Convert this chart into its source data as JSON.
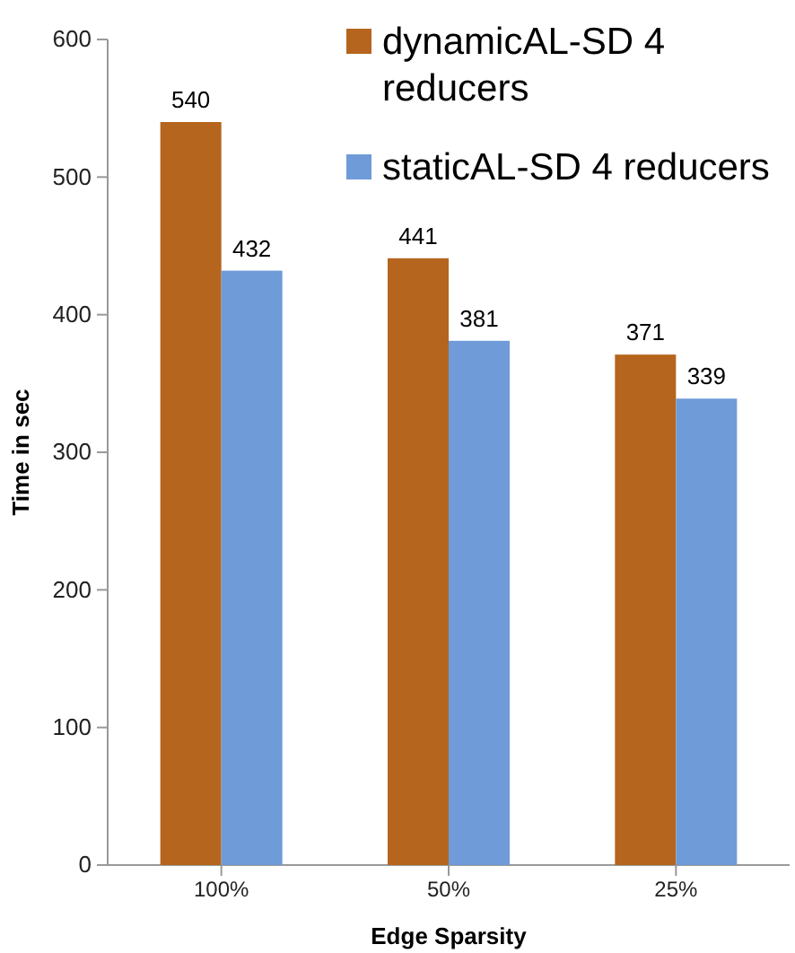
{
  "chart_data": {
    "type": "bar",
    "xlabel": "Edge Sparsity",
    "ylabel": "Time in sec",
    "categories": [
      "100%",
      "50%",
      "25%"
    ],
    "series": [
      {
        "name": "dynamicAL-SD 4 reducers",
        "color": "#b5651d",
        "values": [
          540,
          441,
          371
        ]
      },
      {
        "name": "staticAL-SD 4 reducers",
        "color": "#6f9bd8",
        "values": [
          432,
          381,
          339
        ]
      }
    ],
    "ylim": [
      0,
      600
    ],
    "yticks": [
      0,
      100,
      200,
      300,
      400,
      500,
      600
    ],
    "data_labels": true,
    "legend": "top right",
    "grid": false
  }
}
